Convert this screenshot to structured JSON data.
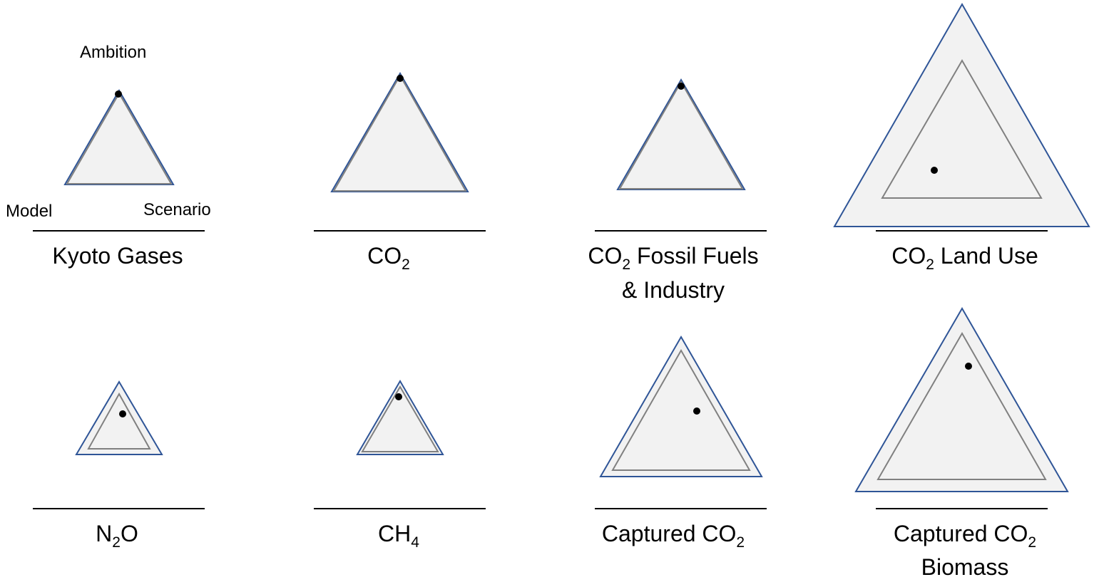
{
  "legend": {
    "top": "Ambition",
    "left": "Model",
    "right": "Scenario"
  },
  "panels": [
    {
      "id": "kyoto",
      "title": "Kyoto Gases",
      "title_sub": "",
      "title_after": "",
      "title_line2": ""
    },
    {
      "id": "co2",
      "title": "CO",
      "title_sub": "2",
      "title_after": "",
      "title_line2": ""
    },
    {
      "id": "co2-ffi",
      "title": "CO",
      "title_sub": "2",
      "title_after": " Fossil Fuels",
      "title_line2": "& Industry"
    },
    {
      "id": "co2-lu",
      "title": "CO",
      "title_sub": "2",
      "title_after": " Land Use",
      "title_line2": ""
    },
    {
      "id": "n2o",
      "title": "N",
      "title_sub": "2",
      "title_after": "O",
      "title_line2": ""
    },
    {
      "id": "ch4",
      "title": "CH",
      "title_sub": "4",
      "title_after": "",
      "title_line2": ""
    },
    {
      "id": "ccs",
      "title": "Captured CO",
      "title_sub": "2",
      "title_after": "",
      "title_line2": ""
    },
    {
      "id": "beccs",
      "title": "Captured CO",
      "title_sub": "2",
      "title_after": "",
      "title_line2": "Biomass"
    }
  ],
  "colors": {
    "outer_stroke": "#2f5597",
    "inner_stroke": "#808080",
    "fill": "#f2f2f2",
    "marker": "#000000"
  }
}
